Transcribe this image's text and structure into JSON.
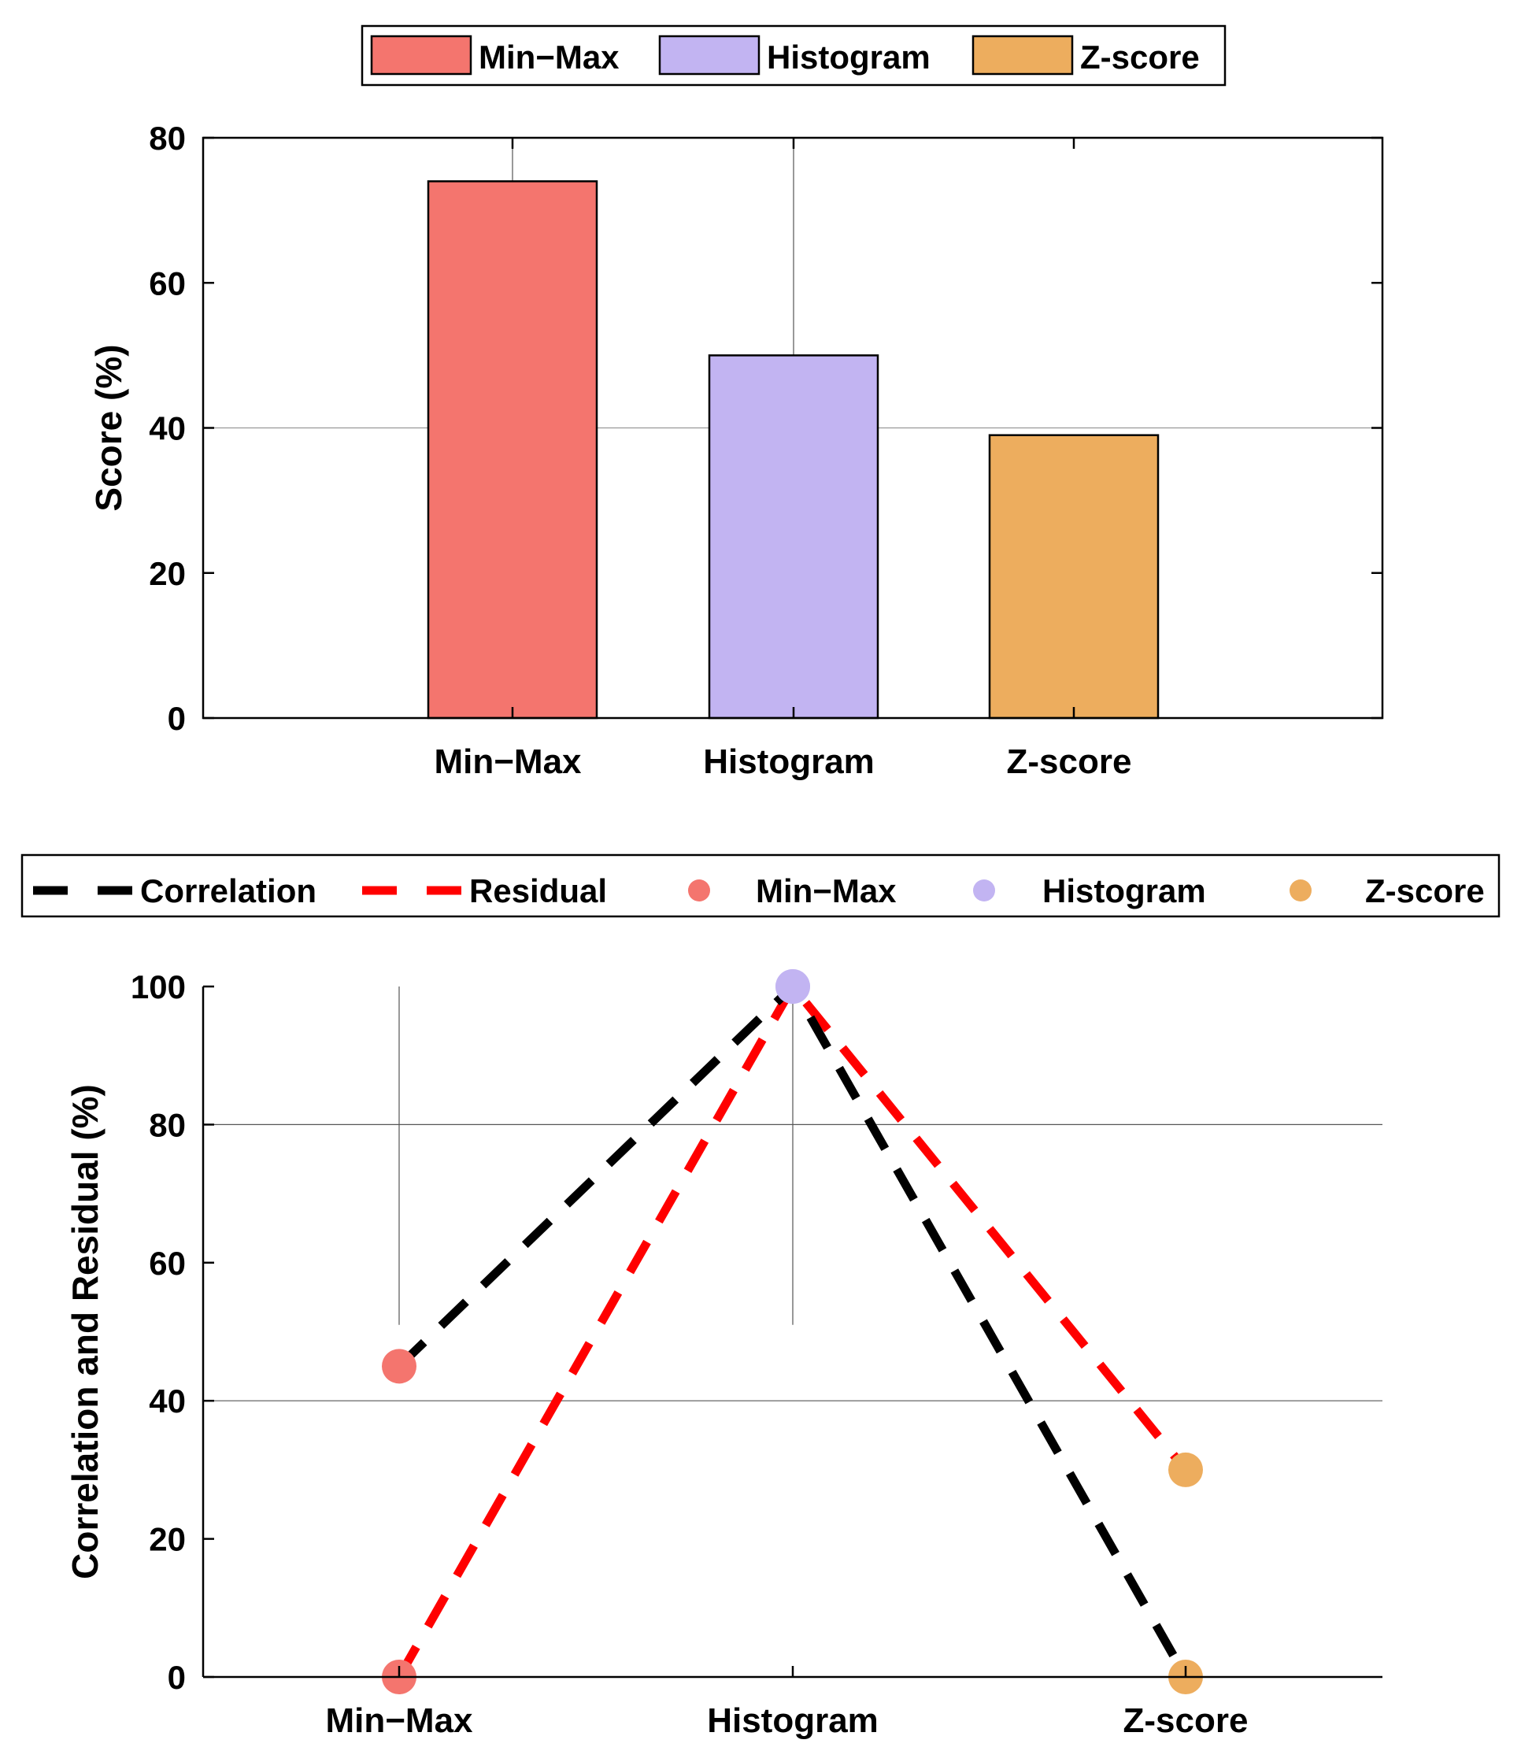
{
  "chart_data": [
    {
      "type": "bar",
      "categories": [
        "Min−Max",
        "Histogram",
        "Z-score"
      ],
      "values": [
        74,
        50,
        39
      ],
      "colors": [
        "#F4756E",
        "#C2B4F2",
        "#EDAD5E"
      ],
      "title": "",
      "xlabel": "",
      "ylabel": "Score (%)",
      "ylim": [
        0,
        80
      ],
      "yticks": [
        0,
        20,
        40,
        60,
        80
      ],
      "grid": "partial",
      "legend": {
        "placement": "top-center",
        "entries": [
          "Min−Max",
          "Histogram",
          "Z-score"
        ]
      }
    },
    {
      "type": "line",
      "categories": [
        "Min−Max",
        "Histogram",
        "Z-score"
      ],
      "series": [
        {
          "name": "Correlation",
          "values": [
            45,
            100,
            0
          ],
          "color": "#000000",
          "style": "dashed"
        },
        {
          "name": "Residual",
          "values": [
            0,
            100,
            30
          ],
          "color": "#FF0000",
          "style": "dashed"
        }
      ],
      "point_colors": [
        "#F4756E",
        "#C2B4F2",
        "#EDAD5E"
      ],
      "title": "",
      "xlabel": "",
      "ylabel": "Correlation and Residual (%)",
      "ylim": [
        0,
        100
      ],
      "yticks": [
        0,
        20,
        40,
        60,
        80,
        100
      ],
      "grid": "partial",
      "legend": {
        "placement": "top-center",
        "entries": [
          "Correlation",
          "Residual",
          "Min−Max",
          "Histogram",
          "Z-score"
        ]
      }
    }
  ]
}
